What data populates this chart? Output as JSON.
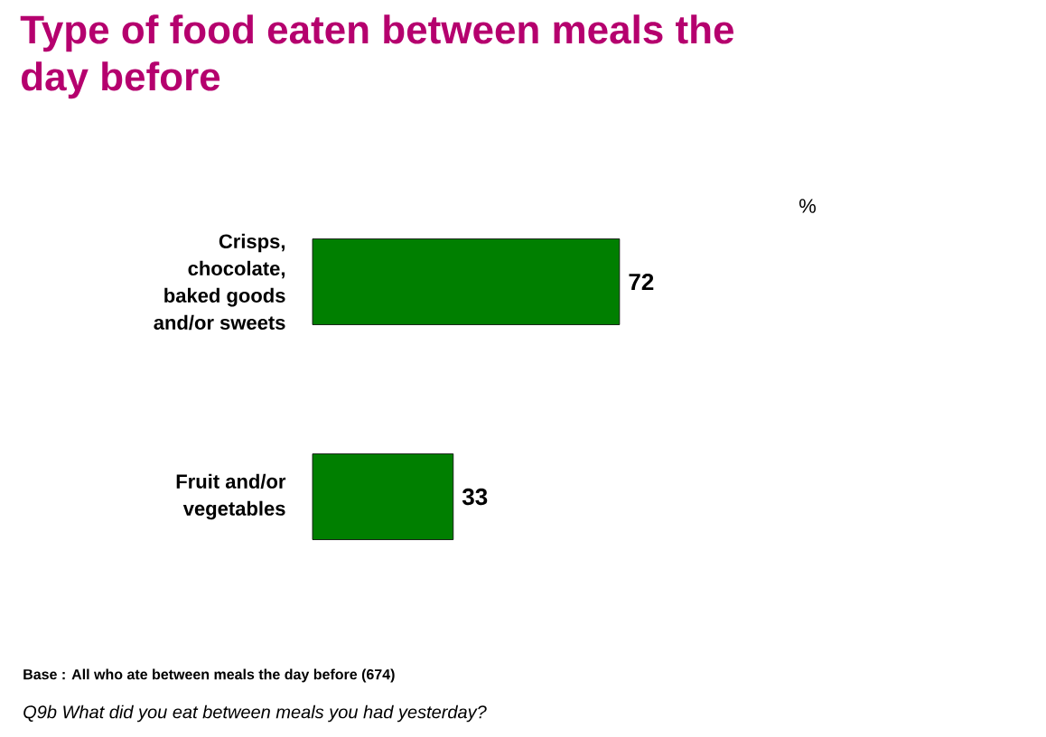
{
  "chart_data": {
    "type": "bar",
    "orientation": "horizontal",
    "title": "Type of food eaten between meals the day before",
    "categories": [
      "Crisps, chocolate, baked goods and/or sweets",
      "Fruit and/or vegetables"
    ],
    "values": [
      72,
      33
    ],
    "color": "#007f00",
    "data_labels": true,
    "annotations": [
      "%",
      "Base : All who ate between meals the day before (674)",
      "Q9b What did you eat between meals you had yesterday?"
    ]
  }
}
